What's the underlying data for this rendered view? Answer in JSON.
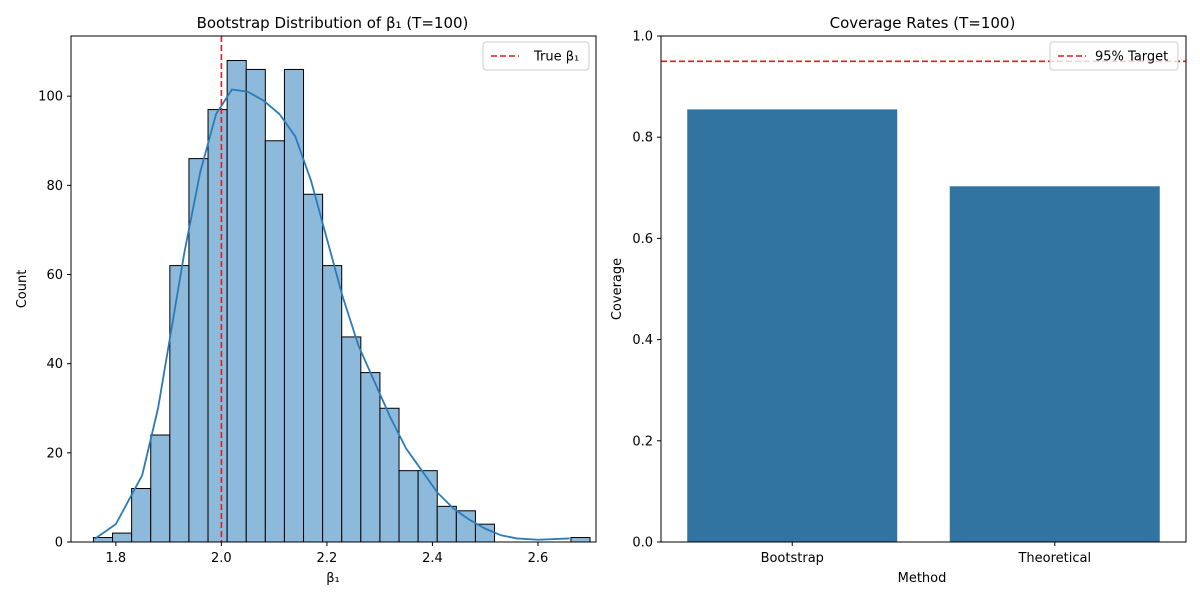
{
  "chart_data": [
    {
      "type": "bar",
      "subtype": "histogram",
      "title": "Bootstrap Distribution of β₁ (T=100)",
      "xlabel": "β₁",
      "ylabel": "Count",
      "xlim": [
        1.715,
        2.71
      ],
      "ylim": [
        0,
        113.5
      ],
      "xticks": [
        1.8,
        2.0,
        2.2,
        2.4,
        2.6
      ],
      "xtick_labels": [
        "1.8",
        "2.0",
        "2.2",
        "2.4",
        "2.6"
      ],
      "yticks": [
        0,
        20,
        40,
        60,
        80,
        100
      ],
      "ytick_labels": [
        "0",
        "20",
        "40",
        "60",
        "80",
        "100"
      ],
      "bin_start": 1.7575,
      "bin_width": 0.0362,
      "counts": [
        1,
        2,
        12,
        24,
        62,
        86,
        97,
        108,
        106,
        90,
        106,
        78,
        62,
        46,
        38,
        30,
        16,
        16,
        8,
        7,
        4,
        0,
        0,
        0,
        0,
        1
      ],
      "bar_color": "#8db9db",
      "edge_color": "#000000",
      "kde": {
        "x": [
          1.76,
          1.8,
          1.85,
          1.88,
          1.9,
          1.93,
          1.96,
          1.99,
          2.02,
          2.05,
          2.08,
          2.11,
          2.14,
          2.17,
          2.2,
          2.23,
          2.26,
          2.29,
          2.32,
          2.35,
          2.38,
          2.41,
          2.44,
          2.47,
          2.5,
          2.53,
          2.56,
          2.6,
          2.66
        ],
        "y": [
          0.7,
          4,
          15,
          30,
          44,
          65,
          83,
          96,
          101.5,
          101,
          99,
          96,
          91,
          81,
          68,
          55,
          44,
          36,
          28,
          21,
          16,
          11,
          7.5,
          5,
          3,
          1.5,
          0.8,
          0.5,
          0.8
        ],
        "color": "#2b7bb9"
      },
      "reference_line": {
        "x": 2.0,
        "label": "True β₁",
        "color": "#e41a1c",
        "style": "dashed"
      },
      "legend": {
        "position": "upper-right",
        "entries": [
          "True β₁"
        ]
      },
      "grid": false
    },
    {
      "type": "bar",
      "title": "Coverage Rates (T=100)",
      "xlabel": "Method",
      "ylabel": "Coverage",
      "categories": [
        "Bootstrap",
        "Theoretical"
      ],
      "values": [
        0.855,
        0.703
      ],
      "ylim": [
        0,
        1.0
      ],
      "yticks": [
        0.0,
        0.2,
        0.4,
        0.6,
        0.8,
        1.0
      ],
      "ytick_labels": [
        "0.0",
        "0.2",
        "0.4",
        "0.6",
        "0.8",
        "1.0"
      ],
      "bar_color": "#3274a1",
      "reference_line": {
        "y": 0.95,
        "label": "95% Target",
        "color": "#e41a1c",
        "style": "dashed"
      },
      "legend": {
        "position": "upper-right",
        "entries": [
          "95% Target"
        ]
      },
      "grid": false
    }
  ]
}
